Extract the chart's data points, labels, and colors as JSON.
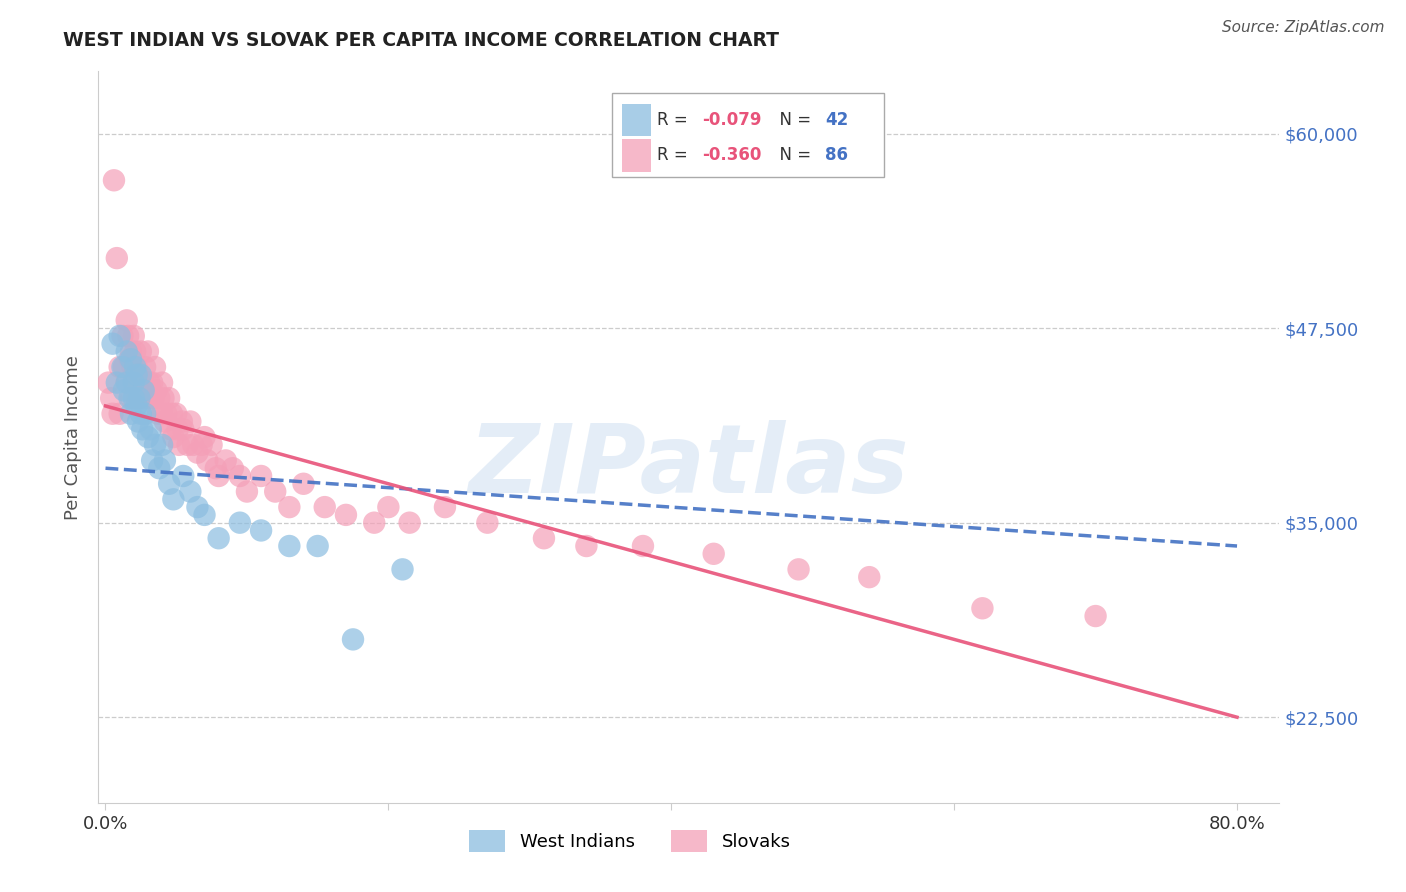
{
  "title": "WEST INDIAN VS SLOVAK PER CAPITA INCOME CORRELATION CHART",
  "source": "Source: ZipAtlas.com",
  "ylabel": "Per Capita Income",
  "yticks": [
    22500,
    35000,
    47500,
    60000
  ],
  "ytick_labels": [
    "$22,500",
    "$35,000",
    "$47,500",
    "$60,000"
  ],
  "ymin": 17000,
  "ymax": 64000,
  "xmin": -0.005,
  "xmax": 0.83,
  "west_indian_color": "#8bbde0",
  "slovak_color": "#f4a0b8",
  "west_indian_line_color": "#4472c4",
  "slovak_line_color": "#e8537a",
  "watermark": "ZIPatlas",
  "legend_r_color": "#e8537a",
  "legend_n_color": "#4472c4",
  "west_indian_x": [
    0.005,
    0.008,
    0.01,
    0.012,
    0.013,
    0.015,
    0.015,
    0.017,
    0.018,
    0.018,
    0.02,
    0.02,
    0.021,
    0.022,
    0.022,
    0.023,
    0.024,
    0.025,
    0.025,
    0.026,
    0.027,
    0.028,
    0.03,
    0.032,
    0.033,
    0.035,
    0.038,
    0.04,
    0.042,
    0.045,
    0.048,
    0.055,
    0.06,
    0.065,
    0.07,
    0.08,
    0.095,
    0.11,
    0.13,
    0.15,
    0.175,
    0.21
  ],
  "west_indian_y": [
    46500,
    44000,
    47000,
    45000,
    43500,
    46000,
    44000,
    43000,
    45500,
    42000,
    44000,
    43000,
    45000,
    44500,
    42500,
    41500,
    43000,
    44500,
    42000,
    41000,
    43500,
    42000,
    40500,
    41000,
    39000,
    40000,
    38500,
    40000,
    39000,
    37500,
    36500,
    38000,
    37000,
    36000,
    35500,
    34000,
    35000,
    34500,
    33500,
    33500,
    27500,
    32000
  ],
  "slovak_x": [
    0.002,
    0.004,
    0.005,
    0.006,
    0.008,
    0.01,
    0.01,
    0.012,
    0.013,
    0.015,
    0.015,
    0.016,
    0.017,
    0.018,
    0.018,
    0.019,
    0.02,
    0.02,
    0.021,
    0.022,
    0.022,
    0.023,
    0.024,
    0.025,
    0.025,
    0.026,
    0.027,
    0.028,
    0.029,
    0.03,
    0.03,
    0.031,
    0.032,
    0.033,
    0.034,
    0.035,
    0.036,
    0.037,
    0.038,
    0.04,
    0.04,
    0.041,
    0.042,
    0.043,
    0.045,
    0.046,
    0.047,
    0.048,
    0.05,
    0.051,
    0.052,
    0.054,
    0.055,
    0.058,
    0.06,
    0.062,
    0.065,
    0.068,
    0.07,
    0.072,
    0.075,
    0.078,
    0.08,
    0.085,
    0.09,
    0.095,
    0.1,
    0.11,
    0.12,
    0.13,
    0.14,
    0.155,
    0.17,
    0.19,
    0.2,
    0.215,
    0.24,
    0.27,
    0.31,
    0.34,
    0.38,
    0.43,
    0.49,
    0.54,
    0.62,
    0.7
  ],
  "slovak_y": [
    44000,
    43000,
    42000,
    57000,
    52000,
    45000,
    42000,
    47000,
    45000,
    48000,
    44000,
    47000,
    45500,
    46000,
    43000,
    45000,
    47000,
    44000,
    46000,
    45000,
    43000,
    44500,
    43500,
    46000,
    44000,
    43000,
    44000,
    45000,
    43000,
    46000,
    43000,
    44000,
    43500,
    44000,
    43000,
    45000,
    43500,
    42000,
    43000,
    44000,
    42000,
    43000,
    41500,
    42000,
    43000,
    41000,
    42000,
    40500,
    42000,
    41000,
    40000,
    41500,
    41000,
    40000,
    41500,
    40000,
    39500,
    40000,
    40500,
    39000,
    40000,
    38500,
    38000,
    39000,
    38500,
    38000,
    37000,
    38000,
    37000,
    36000,
    37500,
    36000,
    35500,
    35000,
    36000,
    35000,
    36000,
    35000,
    34000,
    33500,
    33500,
    33000,
    32000,
    31500,
    29500,
    29000
  ]
}
